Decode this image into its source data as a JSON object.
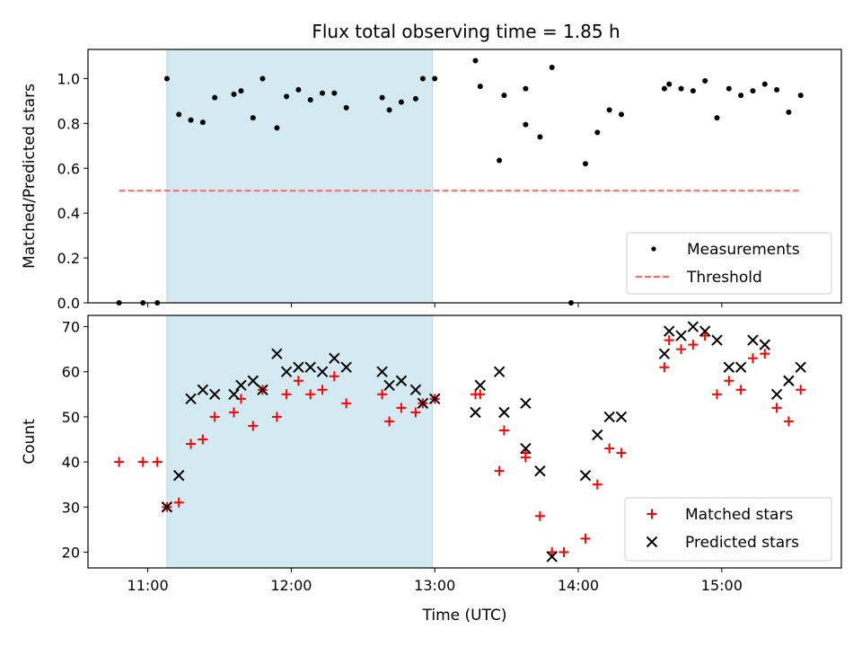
{
  "chart_data": [
    {
      "type": "scatter",
      "title": "Flux total observing time = 1.85 h",
      "ylabel": "Matched/Predicted stars",
      "xlabel": "",
      "ylim": [
        0.0,
        1.13
      ],
      "yticks": [
        "0.0",
        "0.2",
        "0.4",
        "0.6",
        "0.8",
        "1.0"
      ],
      "xlim": [
        "10:35",
        "15:50"
      ],
      "xticks": [
        "11:00",
        "12:00",
        "13:00",
        "14:00",
        "15:00"
      ],
      "shaded_region": {
        "start": "11:08",
        "end": "12:59",
        "color": "#add8e6"
      },
      "legend": {
        "position": "lower-right",
        "entries": [
          "Measurements",
          "Threshold"
        ]
      },
      "series": [
        {
          "name": "Measurements",
          "marker": "dot",
          "color": "#000000",
          "points": [
            [
              "10:48",
              0.0
            ],
            [
              "10:58",
              0.0
            ],
            [
              "11:04",
              0.0
            ],
            [
              "11:08",
              1.0
            ],
            [
              "11:13",
              0.84
            ],
            [
              "11:18",
              0.815
            ],
            [
              "11:23",
              0.805
            ],
            [
              "11:28",
              0.915
            ],
            [
              "11:36",
              0.93
            ],
            [
              "11:39",
              0.945
            ],
            [
              "11:44",
              0.825
            ],
            [
              "11:48",
              1.0
            ],
            [
              "11:54",
              0.78
            ],
            [
              "11:58",
              0.92
            ],
            [
              "12:03",
              0.95
            ],
            [
              "12:08",
              0.905
            ],
            [
              "12:13",
              0.935
            ],
            [
              "12:18",
              0.935
            ],
            [
              "12:23",
              0.87
            ],
            [
              "12:38",
              0.915
            ],
            [
              "12:41",
              0.86
            ],
            [
              "12:46",
              0.895
            ],
            [
              "12:52",
              0.91
            ],
            [
              "12:55",
              1.0
            ],
            [
              "13:00",
              1.0
            ],
            [
              "13:17",
              1.08
            ],
            [
              "13:19",
              0.965
            ],
            [
              "13:27",
              0.635
            ],
            [
              "13:29",
              0.925
            ],
            [
              "13:38",
              0.955
            ],
            [
              "13:38",
              0.795
            ],
            [
              "13:44",
              0.74
            ],
            [
              "13:49",
              1.05
            ],
            [
              "13:57",
              0.0
            ],
            [
              "14:03",
              0.62
            ],
            [
              "14:08",
              0.76
            ],
            [
              "14:13",
              0.86
            ],
            [
              "14:18",
              0.84
            ],
            [
              "14:36",
              0.955
            ],
            [
              "14:38",
              0.975
            ],
            [
              "14:43",
              0.955
            ],
            [
              "14:48",
              0.945
            ],
            [
              "14:53",
              0.99
            ],
            [
              "14:58",
              0.825
            ],
            [
              "15:03",
              0.955
            ],
            [
              "15:08",
              0.925
            ],
            [
              "15:13",
              0.945
            ],
            [
              "15:18",
              0.975
            ],
            [
              "15:23",
              0.95
            ],
            [
              "15:28",
              0.85
            ],
            [
              "15:33",
              0.925
            ]
          ]
        },
        {
          "name": "Threshold",
          "style": "dashed",
          "color": "#ff6666",
          "points": [
            [
              "10:48",
              0.5
            ],
            [
              "15:33",
              0.5
            ]
          ]
        }
      ]
    },
    {
      "type": "scatter",
      "title": "",
      "ylabel": "Count",
      "xlabel": "Time (UTC)",
      "ylim": [
        16.5,
        72.5
      ],
      "yticks": [
        "20",
        "30",
        "40",
        "50",
        "60",
        "70"
      ],
      "xlim": [
        "10:35",
        "15:50"
      ],
      "xticks": [
        "11:00",
        "12:00",
        "13:00",
        "14:00",
        "15:00"
      ],
      "shaded_region": {
        "start": "11:08",
        "end": "12:59",
        "color": "#add8e6"
      },
      "legend": {
        "position": "lower-right",
        "entries": [
          "Matched stars",
          "Predicted stars"
        ]
      },
      "series": [
        {
          "name": "Matched stars",
          "marker": "plus",
          "color": "#ff0000",
          "points": [
            [
              "10:48",
              40
            ],
            [
              "10:58",
              40
            ],
            [
              "11:04",
              40
            ],
            [
              "11:08",
              30
            ],
            [
              "11:13",
              31
            ],
            [
              "11:18",
              44
            ],
            [
              "11:23",
              45
            ],
            [
              "11:28",
              50
            ],
            [
              "11:36",
              51
            ],
            [
              "11:39",
              54
            ],
            [
              "11:44",
              48
            ],
            [
              "11:48",
              56
            ],
            [
              "11:54",
              50
            ],
            [
              "11:58",
              55
            ],
            [
              "12:03",
              58
            ],
            [
              "12:08",
              55
            ],
            [
              "12:13",
              56
            ],
            [
              "12:18",
              59
            ],
            [
              "12:23",
              53
            ],
            [
              "12:38",
              55
            ],
            [
              "12:41",
              49
            ],
            [
              "12:46",
              52
            ],
            [
              "12:52",
              51
            ],
            [
              "12:55",
              53
            ],
            [
              "13:00",
              54
            ],
            [
              "13:17",
              55
            ],
            [
              "13:19",
              55
            ],
            [
              "13:27",
              38
            ],
            [
              "13:29",
              47
            ],
            [
              "13:38",
              41
            ],
            [
              "13:38",
              42
            ],
            [
              "13:44",
              28
            ],
            [
              "13:49",
              20
            ],
            [
              "13:54",
              20
            ],
            [
              "14:03",
              23
            ],
            [
              "14:08",
              35
            ],
            [
              "14:13",
              43
            ],
            [
              "14:18",
              42
            ],
            [
              "14:36",
              61
            ],
            [
              "14:38",
              67
            ],
            [
              "14:43",
              65
            ],
            [
              "14:48",
              66
            ],
            [
              "14:53",
              68
            ],
            [
              "14:58",
              55
            ],
            [
              "15:03",
              58
            ],
            [
              "15:08",
              56
            ],
            [
              "15:13",
              63
            ],
            [
              "15:18",
              64
            ],
            [
              "15:23",
              52
            ],
            [
              "15:28",
              49
            ],
            [
              "15:33",
              56
            ]
          ]
        },
        {
          "name": "Predicted stars",
          "marker": "x",
          "color": "#000000",
          "points": [
            [
              "11:08",
              30
            ],
            [
              "11:13",
              37
            ],
            [
              "11:18",
              54
            ],
            [
              "11:23",
              56
            ],
            [
              "11:28",
              55
            ],
            [
              "11:36",
              55
            ],
            [
              "11:39",
              57
            ],
            [
              "11:44",
              58
            ],
            [
              "11:48",
              56
            ],
            [
              "11:54",
              64
            ],
            [
              "11:58",
              60
            ],
            [
              "12:03",
              61
            ],
            [
              "12:08",
              61
            ],
            [
              "12:13",
              60
            ],
            [
              "12:18",
              63
            ],
            [
              "12:23",
              61
            ],
            [
              "12:38",
              60
            ],
            [
              "12:41",
              57
            ],
            [
              "12:46",
              58
            ],
            [
              "12:52",
              56
            ],
            [
              "12:55",
              53
            ],
            [
              "13:00",
              54
            ],
            [
              "13:17",
              51
            ],
            [
              "13:19",
              57
            ],
            [
              "13:27",
              60
            ],
            [
              "13:29",
              51
            ],
            [
              "13:38",
              53
            ],
            [
              "13:38",
              43
            ],
            [
              "13:44",
              38
            ],
            [
              "13:49",
              19
            ],
            [
              "14:03",
              37
            ],
            [
              "14:08",
              46
            ],
            [
              "14:13",
              50
            ],
            [
              "14:18",
              50
            ],
            [
              "14:36",
              64
            ],
            [
              "14:38",
              69
            ],
            [
              "14:43",
              68
            ],
            [
              "14:48",
              70
            ],
            [
              "14:53",
              69
            ],
            [
              "14:58",
              67
            ],
            [
              "15:03",
              61
            ],
            [
              "15:08",
              61
            ],
            [
              "15:13",
              67
            ],
            [
              "15:18",
              66
            ],
            [
              "15:23",
              55
            ],
            [
              "15:28",
              58
            ],
            [
              "15:33",
              61
            ]
          ]
        }
      ]
    }
  ]
}
